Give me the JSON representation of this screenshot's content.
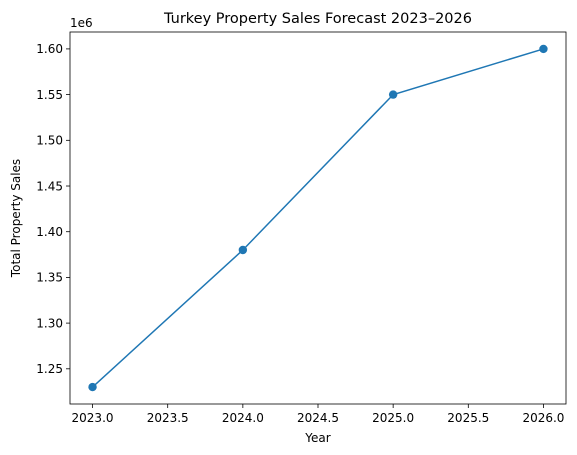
{
  "chart_data": {
    "type": "line",
    "title": "Turkey Property Sales Forecast 2023–2026",
    "xlabel": "Year",
    "ylabel": "Total Property Sales",
    "y_offset_label": "1e6",
    "x": [
      2023,
      2024,
      2025,
      2026
    ],
    "series": [
      {
        "values": [
          1230000,
          1380000,
          1550000,
          1600000
        ],
        "color": "#1f77b4",
        "marker": "circle"
      }
    ],
    "xlim": [
      2022.85,
      2026.15
    ],
    "ylim": [
      1.2115,
      1.6185
    ],
    "y_scale_factor": 1000000,
    "x_ticks": [
      2023.0,
      2023.5,
      2024.0,
      2024.5,
      2025.0,
      2025.5,
      2026.0
    ],
    "x_tick_labels": [
      "2023.0",
      "2023.5",
      "2024.0",
      "2024.5",
      "2025.0",
      "2025.5",
      "2026.0"
    ],
    "y_ticks": [
      1.25,
      1.3,
      1.35,
      1.4,
      1.45,
      1.5,
      1.55,
      1.6
    ],
    "y_tick_labels": [
      "1.25",
      "1.30",
      "1.35",
      "1.40",
      "1.45",
      "1.50",
      "1.55",
      "1.60"
    ],
    "grid": false,
    "legend": "none"
  }
}
